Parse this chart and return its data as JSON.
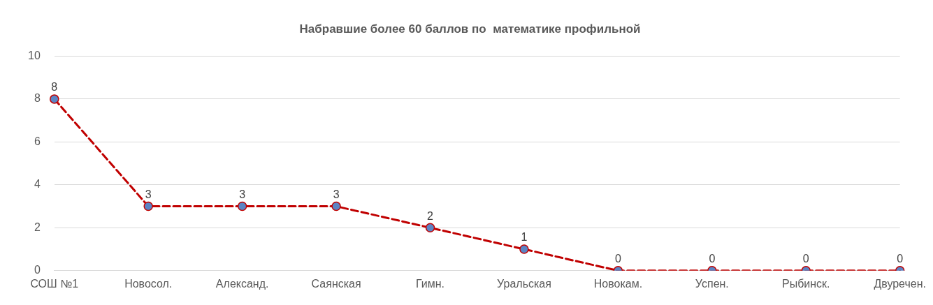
{
  "chart_data": {
    "type": "line",
    "title": "Набравшие более 60 баллов по  математике профильной",
    "categories": [
      "СОШ №1",
      "Новосол.",
      "Александ.",
      "Саянская",
      "Гимн.",
      "Уральская",
      "Новокам.",
      "Успен.",
      "Рыбинск.",
      "Двуречен."
    ],
    "series": [
      {
        "color": "#c00000",
        "values": [
          8,
          3,
          3,
          3,
          2,
          1,
          0,
          0,
          0,
          0
        ]
      }
    ],
    "ylim": [
      0,
      10
    ],
    "yticks": [
      0,
      2,
      4,
      6,
      8,
      10
    ],
    "grid": "y",
    "marker": "circle",
    "line_style": "dashed",
    "data_labels": true
  }
}
